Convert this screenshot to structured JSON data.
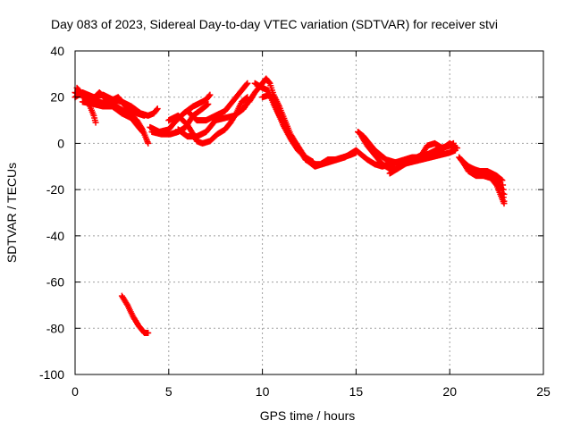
{
  "chart_data": {
    "type": "scatter",
    "title": "Day 083 of 2023, Sidereal Day-to-day VTEC variation (SDTVAR) for receiver stvi",
    "xlabel": "GPS time / hours",
    "ylabel": "SDTVAR / TECUs",
    "xlim": [
      0,
      25
    ],
    "ylim": [
      -100,
      40
    ],
    "xticks": [
      "0",
      "5",
      "10",
      "15",
      "20",
      "25"
    ],
    "yticks": [
      "40",
      "20",
      "0",
      "-20",
      "-40",
      "-60",
      "-80",
      "-100"
    ],
    "grid": true,
    "marker": "+",
    "series": [
      {
        "color": "#ff0000",
        "tracks": [
          [
            [
              0.0,
              22
            ],
            [
              0.3,
              21
            ],
            [
              0.7,
              19
            ],
            [
              1.2,
              18
            ],
            [
              1.8,
              17
            ],
            [
              2.2,
              16
            ],
            [
              2.6,
              14
            ],
            [
              3.0,
              12
            ],
            [
              3.3,
              10
            ],
            [
              3.6,
              6
            ],
            [
              3.8,
              2
            ],
            [
              3.9,
              0
            ]
          ],
          [
            [
              0.1,
              24
            ],
            [
              0.5,
              20
            ],
            [
              0.8,
              16
            ],
            [
              1.0,
              12
            ],
            [
              1.1,
              9
            ]
          ],
          [
            [
              0.0,
              20
            ],
            [
              0.4,
              22
            ],
            [
              1.0,
              20
            ],
            [
              1.5,
              21
            ],
            [
              2.0,
              19
            ],
            [
              2.5,
              18
            ],
            [
              3.0,
              16
            ],
            [
              3.5,
              13
            ],
            [
              3.9,
              12
            ],
            [
              4.2,
              13
            ],
            [
              4.4,
              15
            ]
          ],
          [
            [
              0.8,
              18
            ],
            [
              1.3,
              22
            ],
            [
              1.8,
              18
            ],
            [
              2.3,
              20
            ],
            [
              2.8,
              15
            ],
            [
              3.3,
              13
            ],
            [
              3.7,
              12
            ]
          ],
          [
            [
              0.4,
              18
            ],
            [
              1.0,
              17
            ],
            [
              1.5,
              16
            ],
            [
              2.0,
              16
            ],
            [
              2.5,
              13
            ],
            [
              3.0,
              11
            ],
            [
              3.3,
              8
            ],
            [
              3.6,
              5
            ]
          ],
          [
            [
              2.5,
              -66
            ],
            [
              2.8,
              -70
            ],
            [
              3.1,
              -75
            ],
            [
              3.4,
              -79
            ],
            [
              3.7,
              -82
            ],
            [
              3.9,
              -82
            ]
          ],
          [
            [
              4.0,
              7
            ],
            [
              4.5,
              5
            ],
            [
              5.0,
              6
            ],
            [
              5.3,
              9
            ],
            [
              5.8,
              13
            ],
            [
              6.3,
              16
            ],
            [
              6.8,
              18
            ],
            [
              7.0,
              19
            ],
            [
              7.2,
              21
            ]
          ],
          [
            [
              4.1,
              5
            ],
            [
              4.6,
              4
            ],
            [
              5.1,
              4
            ],
            [
              5.5,
              5
            ],
            [
              5.9,
              7
            ],
            [
              6.3,
              12
            ],
            [
              6.8,
              15
            ],
            [
              7.1,
              17
            ]
          ],
          [
            [
              5.0,
              10
            ],
            [
              5.5,
              12
            ],
            [
              6.0,
              8
            ],
            [
              6.3,
              4
            ],
            [
              6.5,
              1
            ],
            [
              6.8,
              0
            ],
            [
              7.2,
              1
            ],
            [
              7.6,
              4
            ],
            [
              8.0,
              6
            ],
            [
              8.3,
              9
            ],
            [
              8.6,
              13
            ],
            [
              8.9,
              18
            ],
            [
              9.2,
              20
            ]
          ],
          [
            [
              6.0,
              14
            ],
            [
              6.5,
              10
            ],
            [
              7.0,
              10
            ],
            [
              7.5,
              12
            ],
            [
              8.0,
              14
            ],
            [
              8.5,
              19
            ],
            [
              8.8,
              22
            ],
            [
              9.0,
              24
            ],
            [
              9.2,
              26
            ]
          ],
          [
            [
              5.5,
              6
            ],
            [
              6.0,
              3
            ],
            [
              6.5,
              3
            ],
            [
              7.0,
              5
            ],
            [
              7.5,
              10
            ],
            [
              8.0,
              11
            ],
            [
              8.5,
              12
            ],
            [
              9.0,
              15
            ],
            [
              9.4,
              20
            ]
          ],
          [
            [
              9.3,
              18
            ],
            [
              9.6,
              22
            ],
            [
              9.9,
              25
            ],
            [
              10.1,
              27
            ],
            [
              10.2,
              28
            ],
            [
              10.4,
              26
            ],
            [
              10.6,
              21
            ],
            [
              10.9,
              16
            ],
            [
              11.2,
              10
            ],
            [
              11.5,
              4
            ],
            [
              11.8,
              0
            ],
            [
              12.2,
              -5
            ],
            [
              12.5,
              -8
            ],
            [
              12.8,
              -10
            ],
            [
              13.2,
              -9
            ],
            [
              13.6,
              -8
            ],
            [
              14.0,
              -7
            ],
            [
              14.4,
              -6
            ],
            [
              14.8,
              -4
            ],
            [
              15.0,
              -3
            ],
            [
              15.3,
              -5
            ],
            [
              15.6,
              -7
            ],
            [
              16.0,
              -9
            ],
            [
              16.4,
              -10
            ],
            [
              16.8,
              -9
            ],
            [
              17.2,
              -8
            ],
            [
              17.6,
              -7
            ],
            [
              18.0,
              -6
            ],
            [
              18.5,
              -6
            ],
            [
              19.0,
              -5
            ],
            [
              19.5,
              -3
            ],
            [
              20.0,
              0
            ],
            [
              20.2,
              -1
            ]
          ],
          [
            [
              9.6,
              26
            ],
            [
              10.0,
              24
            ],
            [
              10.3,
              23
            ],
            [
              10.6,
              17
            ],
            [
              10.9,
              12
            ],
            [
              11.3,
              6
            ],
            [
              11.6,
              1
            ],
            [
              12.0,
              -3
            ],
            [
              12.3,
              -7
            ],
            [
              12.7,
              -9
            ],
            [
              13.1,
              -9
            ],
            [
              13.5,
              -7
            ],
            [
              13.9,
              -7
            ],
            [
              14.3,
              -6
            ],
            [
              14.7,
              -5
            ],
            [
              15.0,
              -4
            ]
          ],
          [
            [
              10.0,
              20
            ],
            [
              10.4,
              21
            ],
            [
              10.8,
              14
            ],
            [
              11.1,
              8
            ],
            [
              11.5,
              2
            ],
            [
              11.9,
              -3
            ],
            [
              12.3,
              -6
            ],
            [
              12.7,
              -8
            ]
          ],
          [
            [
              15.1,
              5
            ],
            [
              15.4,
              3
            ],
            [
              15.7,
              0
            ],
            [
              16.0,
              -3
            ],
            [
              16.3,
              -5
            ],
            [
              16.6,
              -7
            ],
            [
              17.0,
              -8
            ],
            [
              17.5,
              -9
            ],
            [
              18.0,
              -8
            ],
            [
              18.5,
              -7
            ],
            [
              19.0,
              -6
            ],
            [
              19.5,
              -5
            ],
            [
              20.0,
              -4
            ],
            [
              20.3,
              -3
            ]
          ],
          [
            [
              15.3,
              3
            ],
            [
              15.6,
              -1
            ],
            [
              16.0,
              -5
            ],
            [
              16.4,
              -9
            ],
            [
              16.8,
              -11
            ],
            [
              17.2,
              -11
            ],
            [
              17.6,
              -8
            ],
            [
              18.0,
              -7
            ],
            [
              18.5,
              -6
            ],
            [
              19.0,
              -4
            ],
            [
              19.5,
              -2
            ],
            [
              20.0,
              -1
            ],
            [
              20.2,
              0
            ]
          ],
          [
            [
              16.8,
              -13
            ],
            [
              17.2,
              -11
            ],
            [
              17.6,
              -9
            ],
            [
              18.0,
              -7
            ],
            [
              18.5,
              -5
            ],
            [
              18.8,
              -1
            ],
            [
              19.2,
              0
            ],
            [
              19.6,
              -2
            ],
            [
              20.0,
              -1
            ],
            [
              20.4,
              -2
            ]
          ],
          [
            [
              20.5,
              -6
            ],
            [
              20.8,
              -9
            ],
            [
              21.2,
              -11
            ],
            [
              21.6,
              -12
            ],
            [
              22.0,
              -13
            ],
            [
              22.4,
              -15
            ],
            [
              22.6,
              -17
            ],
            [
              22.8,
              -20
            ],
            [
              22.9,
              -25
            ]
          ],
          [
            [
              20.7,
              -8
            ],
            [
              21.0,
              -12
            ],
            [
              21.4,
              -14
            ],
            [
              21.8,
              -14
            ],
            [
              22.2,
              -15
            ],
            [
              22.5,
              -18
            ],
            [
              22.7,
              -22
            ],
            [
              22.9,
              -26
            ]
          ],
          [
            [
              20.6,
              -7
            ],
            [
              21.0,
              -10
            ],
            [
              21.5,
              -12
            ],
            [
              22.0,
              -12
            ],
            [
              22.5,
              -14
            ],
            [
              22.8,
              -16
            ],
            [
              22.9,
              -22
            ]
          ]
        ]
      }
    ]
  }
}
